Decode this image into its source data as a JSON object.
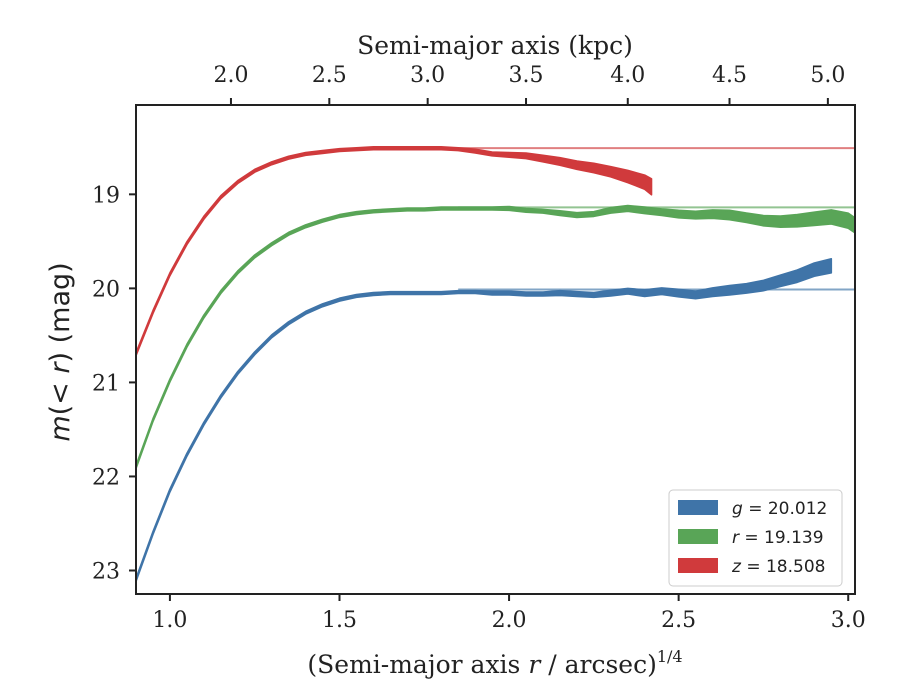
{
  "chart_data": {
    "type": "line",
    "x_label_prefix": "(Semi-major axis ",
    "x_label_var": "r",
    "x_label_suffix": " / arcsec)",
    "x_label_power": "1/4",
    "top_xlabel": "Semi-major axis (kpc)",
    "y_label_prefix": "m",
    "y_label_mid": "(< ",
    "y_label_var": "r",
    "y_label_suffix": ") (mag)",
    "xlim": [
      0.9,
      3.02
    ],
    "ylim": [
      23.25,
      18.05
    ],
    "y_inverted": true,
    "x_ticks": [
      1.0,
      1.5,
      2.0,
      2.5,
      3.0
    ],
    "x_tick_labels": [
      "1.0",
      "1.5",
      "2.0",
      "2.5",
      "3.0"
    ],
    "y_ticks": [
      19,
      20,
      21,
      22,
      23
    ],
    "y_tick_labels": [
      "19",
      "20",
      "21",
      "22",
      "23"
    ],
    "top_ticks_kpc": [
      2.0,
      2.5,
      3.0,
      3.5,
      4.0,
      4.5,
      5.0
    ],
    "top_tick_labels": [
      "2.0",
      "2.5",
      "3.0",
      "3.5",
      "4.0",
      "4.5",
      "5.0"
    ],
    "top_tick_positions_x": [
      1.18,
      1.47,
      1.76,
      2.05,
      2.35,
      2.65,
      2.94
    ],
    "legend_position": "lower-right",
    "series": [
      {
        "band": "g",
        "value_label": "20.012",
        "total_mag": 20.012,
        "color": "#3f74a8",
        "x": [
          0.9,
          0.95,
          1.0,
          1.05,
          1.1,
          1.15,
          1.2,
          1.25,
          1.3,
          1.35,
          1.4,
          1.45,
          1.5,
          1.55,
          1.6,
          1.65,
          1.7,
          1.75,
          1.8,
          1.85,
          1.9,
          1.95,
          2.0,
          2.05,
          2.1,
          2.15,
          2.2,
          2.25,
          2.3,
          2.35,
          2.4,
          2.45,
          2.5,
          2.55,
          2.6,
          2.65,
          2.7,
          2.75,
          2.8,
          2.85,
          2.9,
          2.95
        ],
        "y": [
          23.1,
          22.6,
          22.15,
          21.77,
          21.44,
          21.15,
          20.9,
          20.69,
          20.51,
          20.37,
          20.26,
          20.18,
          20.12,
          20.08,
          20.06,
          20.05,
          20.05,
          20.05,
          20.05,
          20.04,
          20.04,
          20.05,
          20.05,
          20.06,
          20.06,
          20.05,
          20.06,
          20.07,
          20.05,
          20.03,
          20.05,
          20.03,
          20.05,
          20.07,
          20.04,
          20.02,
          20.0,
          19.97,
          19.92,
          19.87,
          19.8,
          19.76
        ],
        "width": [
          0.03,
          0.03,
          0.03,
          0.03,
          0.03,
          0.03,
          0.03,
          0.03,
          0.03,
          0.03,
          0.03,
          0.03,
          0.03,
          0.03,
          0.03,
          0.03,
          0.03,
          0.03,
          0.03,
          0.03,
          0.03,
          0.04,
          0.04,
          0.04,
          0.04,
          0.05,
          0.05,
          0.05,
          0.06,
          0.06,
          0.07,
          0.07,
          0.08,
          0.08,
          0.09,
          0.1,
          0.1,
          0.11,
          0.12,
          0.13,
          0.14,
          0.15
        ]
      },
      {
        "band": "r",
        "value_label": "19.139",
        "total_mag": 19.139,
        "color": "#59a557",
        "x": [
          0.9,
          0.95,
          1.0,
          1.05,
          1.1,
          1.15,
          1.2,
          1.25,
          1.3,
          1.35,
          1.4,
          1.45,
          1.5,
          1.55,
          1.6,
          1.65,
          1.7,
          1.75,
          1.8,
          1.85,
          1.9,
          1.95,
          2.0,
          2.05,
          2.1,
          2.15,
          2.2,
          2.25,
          2.3,
          2.35,
          2.4,
          2.45,
          2.5,
          2.55,
          2.6,
          2.65,
          2.7,
          2.75,
          2.8,
          2.85,
          2.9,
          2.95,
          3.0,
          3.02
        ],
        "y": [
          21.9,
          21.4,
          20.98,
          20.61,
          20.3,
          20.04,
          19.83,
          19.66,
          19.53,
          19.42,
          19.34,
          19.28,
          19.23,
          19.2,
          19.18,
          19.17,
          19.16,
          19.16,
          19.15,
          19.15,
          19.15,
          19.15,
          19.15,
          19.17,
          19.18,
          19.2,
          19.22,
          19.21,
          19.17,
          19.15,
          19.17,
          19.19,
          19.21,
          19.22,
          19.21,
          19.22,
          19.25,
          19.28,
          19.29,
          19.28,
          19.26,
          19.24,
          19.28,
          19.33
        ],
        "width": [
          0.03,
          0.03,
          0.03,
          0.03,
          0.03,
          0.03,
          0.03,
          0.03,
          0.03,
          0.03,
          0.03,
          0.03,
          0.03,
          0.03,
          0.03,
          0.03,
          0.03,
          0.03,
          0.03,
          0.03,
          0.03,
          0.03,
          0.04,
          0.04,
          0.04,
          0.05,
          0.05,
          0.05,
          0.06,
          0.06,
          0.07,
          0.07,
          0.08,
          0.08,
          0.09,
          0.1,
          0.1,
          0.11,
          0.12,
          0.13,
          0.14,
          0.15,
          0.16,
          0.16
        ]
      },
      {
        "band": "z",
        "value_label": "18.508",
        "total_mag": 18.508,
        "color": "#d03a3c",
        "x": [
          0.9,
          0.95,
          1.0,
          1.05,
          1.1,
          1.15,
          1.2,
          1.25,
          1.3,
          1.35,
          1.4,
          1.45,
          1.5,
          1.55,
          1.6,
          1.65,
          1.7,
          1.75,
          1.8,
          1.85,
          1.9,
          1.95,
          2.0,
          2.05,
          2.1,
          2.15,
          2.2,
          2.25,
          2.3,
          2.35,
          2.4,
          2.42
        ],
        "y": [
          20.7,
          20.25,
          19.85,
          19.52,
          19.25,
          19.03,
          18.87,
          18.75,
          18.67,
          18.61,
          18.57,
          18.55,
          18.53,
          18.52,
          18.51,
          18.51,
          18.51,
          18.51,
          18.51,
          18.52,
          18.54,
          18.57,
          18.58,
          18.59,
          18.62,
          18.65,
          18.69,
          18.72,
          18.76,
          18.81,
          18.87,
          18.92
        ],
        "width": [
          0.03,
          0.03,
          0.03,
          0.03,
          0.03,
          0.03,
          0.03,
          0.03,
          0.03,
          0.03,
          0.03,
          0.03,
          0.03,
          0.03,
          0.03,
          0.03,
          0.03,
          0.03,
          0.03,
          0.03,
          0.04,
          0.04,
          0.05,
          0.06,
          0.07,
          0.08,
          0.09,
          0.1,
          0.11,
          0.13,
          0.15,
          0.17
        ]
      }
    ]
  }
}
